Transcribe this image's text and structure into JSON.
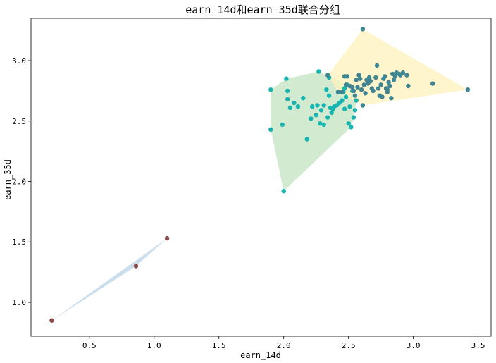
{
  "chart_data": {
    "type": "scatter",
    "title": "earn_14d和earn_35d联合分组",
    "xlabel": "earn_14d",
    "ylabel": "earn_35d",
    "xlim": [
      0.05,
      3.6
    ],
    "ylim": [
      0.72,
      3.35
    ],
    "xticks": [
      0.5,
      1.0,
      1.5,
      2.0,
      2.5,
      3.0,
      3.5
    ],
    "xtick_labels": [
      "0.5",
      "1.0",
      "1.5",
      "2.0",
      "2.5",
      "3.0",
      "3.5"
    ],
    "yticks": [
      1.0,
      1.5,
      2.0,
      2.5,
      3.0
    ],
    "ytick_labels": [
      "1.0",
      "1.5",
      "2.0",
      "2.5",
      "3.0"
    ],
    "grid": false,
    "groups": [
      {
        "color": "#8b4a4a",
        "hull_color": "#b9d3e8",
        "points": [
          [
            0.21,
            0.85
          ],
          [
            0.86,
            1.3
          ],
          [
            1.1,
            1.53
          ]
        ]
      },
      {
        "color": "#17b5b0",
        "hull_color": "#c3e3c0",
        "points": [
          [
            2.0,
            1.92
          ],
          [
            1.9,
            2.43
          ],
          [
            1.9,
            2.76
          ],
          [
            1.99,
            2.47
          ],
          [
            2.02,
            2.85
          ],
          [
            2.03,
            2.68
          ],
          [
            2.03,
            2.75
          ],
          [
            2.05,
            2.61
          ],
          [
            2.08,
            2.65
          ],
          [
            2.11,
            2.62
          ],
          [
            2.15,
            2.69
          ],
          [
            2.18,
            2.35
          ],
          [
            2.21,
            2.52
          ],
          [
            2.22,
            2.62
          ],
          [
            2.25,
            2.55
          ],
          [
            2.26,
            2.63
          ],
          [
            2.27,
            2.91
          ],
          [
            2.28,
            2.48
          ],
          [
            2.29,
            2.59
          ],
          [
            2.31,
            2.63
          ],
          [
            2.31,
            2.47
          ],
          [
            2.33,
            2.76
          ],
          [
            2.34,
            2.53
          ],
          [
            2.35,
            2.71
          ],
          [
            2.35,
            2.86
          ],
          [
            2.36,
            2.61
          ],
          [
            2.37,
            2.57
          ],
          [
            2.38,
            2.6
          ],
          [
            2.39,
            2.62
          ],
          [
            2.41,
            2.63
          ],
          [
            2.43,
            2.65
          ],
          [
            2.45,
            2.67
          ],
          [
            2.46,
            2.74
          ],
          [
            2.47,
            2.77
          ],
          [
            2.48,
            2.7
          ],
          [
            2.49,
            2.8
          ],
          [
            2.5,
            2.48
          ],
          [
            2.51,
            2.62
          ],
          [
            2.52,
            2.45
          ],
          [
            2.53,
            2.75
          ],
          [
            2.54,
            2.53
          ],
          [
            2.55,
            2.59
          ],
          [
            2.56,
            2.67
          ],
          [
            2.47,
            2.6
          ]
        ]
      },
      {
        "color": "#3f8592",
        "hull_color": "#fdf2bc",
        "points": [
          [
            2.34,
            2.88
          ],
          [
            2.42,
            2.74
          ],
          [
            2.45,
            2.74
          ],
          [
            2.47,
            2.87
          ],
          [
            2.48,
            2.8
          ],
          [
            2.49,
            2.87
          ],
          [
            2.51,
            2.79
          ],
          [
            2.53,
            2.78
          ],
          [
            2.54,
            2.75
          ],
          [
            2.55,
            2.71
          ],
          [
            2.56,
            2.84
          ],
          [
            2.57,
            2.78
          ],
          [
            2.58,
            2.88
          ],
          [
            2.59,
            2.85
          ],
          [
            2.6,
            2.76
          ],
          [
            2.61,
            2.63
          ],
          [
            2.61,
            3.26
          ],
          [
            2.62,
            2.8
          ],
          [
            2.63,
            2.73
          ],
          [
            2.64,
            2.84
          ],
          [
            2.65,
            2.81
          ],
          [
            2.66,
            2.86
          ],
          [
            2.67,
            2.83
          ],
          [
            2.68,
            2.77
          ],
          [
            2.69,
            2.75
          ],
          [
            2.71,
            2.86
          ],
          [
            2.72,
            2.96
          ],
          [
            2.73,
            2.77
          ],
          [
            2.74,
            2.71
          ],
          [
            2.75,
            2.8
          ],
          [
            2.76,
            2.7
          ],
          [
            2.77,
            2.85
          ],
          [
            2.78,
            2.87
          ],
          [
            2.79,
            2.77
          ],
          [
            2.8,
            2.74
          ],
          [
            2.81,
            2.82
          ],
          [
            2.82,
            2.79
          ],
          [
            2.83,
            2.69
          ],
          [
            2.84,
            2.89
          ],
          [
            2.85,
            2.84
          ],
          [
            2.86,
            2.87
          ],
          [
            2.87,
            2.9
          ],
          [
            2.89,
            2.89
          ],
          [
            2.9,
            2.88
          ],
          [
            2.92,
            2.9
          ],
          [
            2.95,
            2.88
          ],
          [
            2.96,
            2.79
          ],
          [
            3.15,
            2.81
          ],
          [
            3.42,
            2.76
          ],
          [
            2.8,
            2.76
          ]
        ]
      }
    ]
  }
}
